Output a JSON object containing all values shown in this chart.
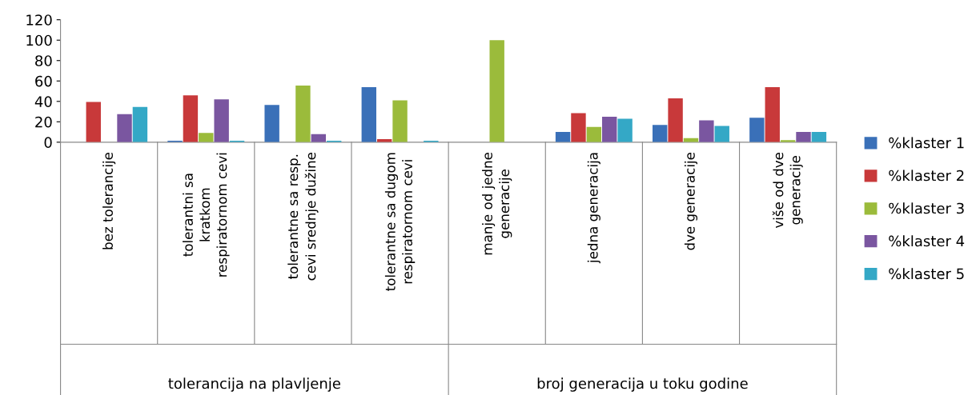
{
  "chart_data": {
    "type": "bar",
    "categories": [
      "bez tolerancije",
      "tolerantni sa\nkratkom\nrespiratornom cevi",
      "tolerantne sa resp.\ncevi srednje dužine",
      "tolerantne sa dugom\nrespiratornom cevi",
      "manje od jedne\ngeneracije",
      "jedna generacija",
      "dve generacije",
      "više od dve\ngeneracije"
    ],
    "series": [
      {
        "name": "%klaster 1",
        "color": "#3a70b8",
        "values": [
          null,
          1.5,
          36.5,
          54,
          null,
          10,
          17,
          24
        ]
      },
      {
        "name": "%klaster 2",
        "color": "#c8393a",
        "values": [
          39.5,
          46,
          null,
          3,
          null,
          28.5,
          43,
          54
        ]
      },
      {
        "name": "%klaster 3",
        "color": "#9bbb3b",
        "values": [
          null,
          9,
          55.5,
          41,
          100,
          15,
          4,
          2
        ]
      },
      {
        "name": "%klaster 4",
        "color": "#7a56a0",
        "values": [
          27.5,
          42,
          8,
          null,
          null,
          25,
          21.5,
          10
        ]
      },
      {
        "name": "%klaster 5",
        "color": "#34a8c6",
        "values": [
          34.5,
          1.5,
          1.5,
          1.5,
          null,
          23,
          16,
          10
        ]
      }
    ],
    "ylim": [
      0,
      120
    ],
    "yticks": [
      0,
      20,
      40,
      60,
      80,
      100,
      120
    ],
    "annotations": [
      "tolerancija na plavljenje",
      "broj generacija u toku godine"
    ],
    "legend": "right",
    "grid": false
  }
}
